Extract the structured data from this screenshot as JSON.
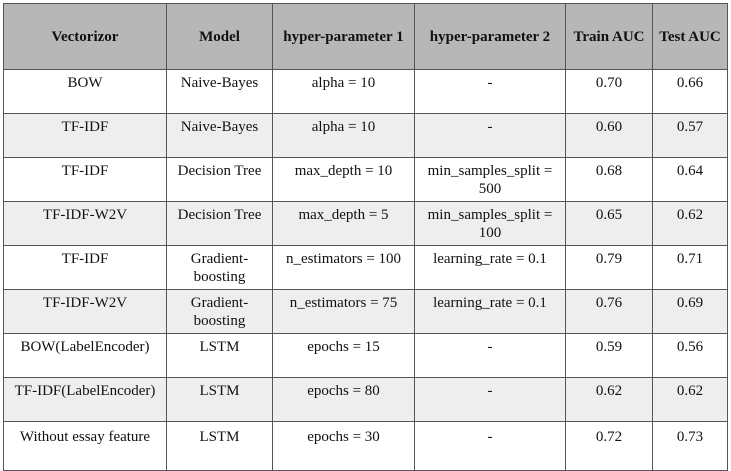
{
  "table": {
    "headers": [
      "Vectorizor",
      "Model",
      "hyper-parameter 1",
      "hyper-parameter 2",
      "Train AUC",
      "Test AUC"
    ],
    "rows": [
      [
        "BOW",
        "Naive-Bayes",
        "alpha = 10",
        "-",
        "0.70",
        "0.66"
      ],
      [
        "TF-IDF",
        "Naive-Bayes",
        "alpha = 10",
        "-",
        "0.60",
        "0.57"
      ],
      [
        "TF-IDF",
        "Decision Tree",
        "max_depth = 10",
        "min_samples_split = 500",
        "0.68",
        "0.64"
      ],
      [
        "TF-IDF-W2V",
        "Decision Tree",
        "max_depth = 5",
        "min_samples_split = 100",
        "0.65",
        "0.62"
      ],
      [
        "TF-IDF",
        "Gradient-boosting",
        "n_estimators = 100",
        "learning_rate = 0.1",
        "0.79",
        "0.71"
      ],
      [
        "TF-IDF-W2V",
        "Gradient-boosting",
        "n_estimators = 75",
        "learning_rate = 0.1",
        "0.76",
        "0.69"
      ],
      [
        "BOW(LabelEncoder)",
        "LSTM",
        "epochs = 15",
        "-",
        "0.59",
        "0.56"
      ],
      [
        "TF-IDF(LabelEncoder)",
        "LSTM",
        "epochs = 80",
        "-",
        "0.62",
        "0.62"
      ],
      [
        "Without essay feature",
        "LSTM",
        "epochs = 30",
        "-",
        "0.72",
        "0.73"
      ]
    ]
  }
}
